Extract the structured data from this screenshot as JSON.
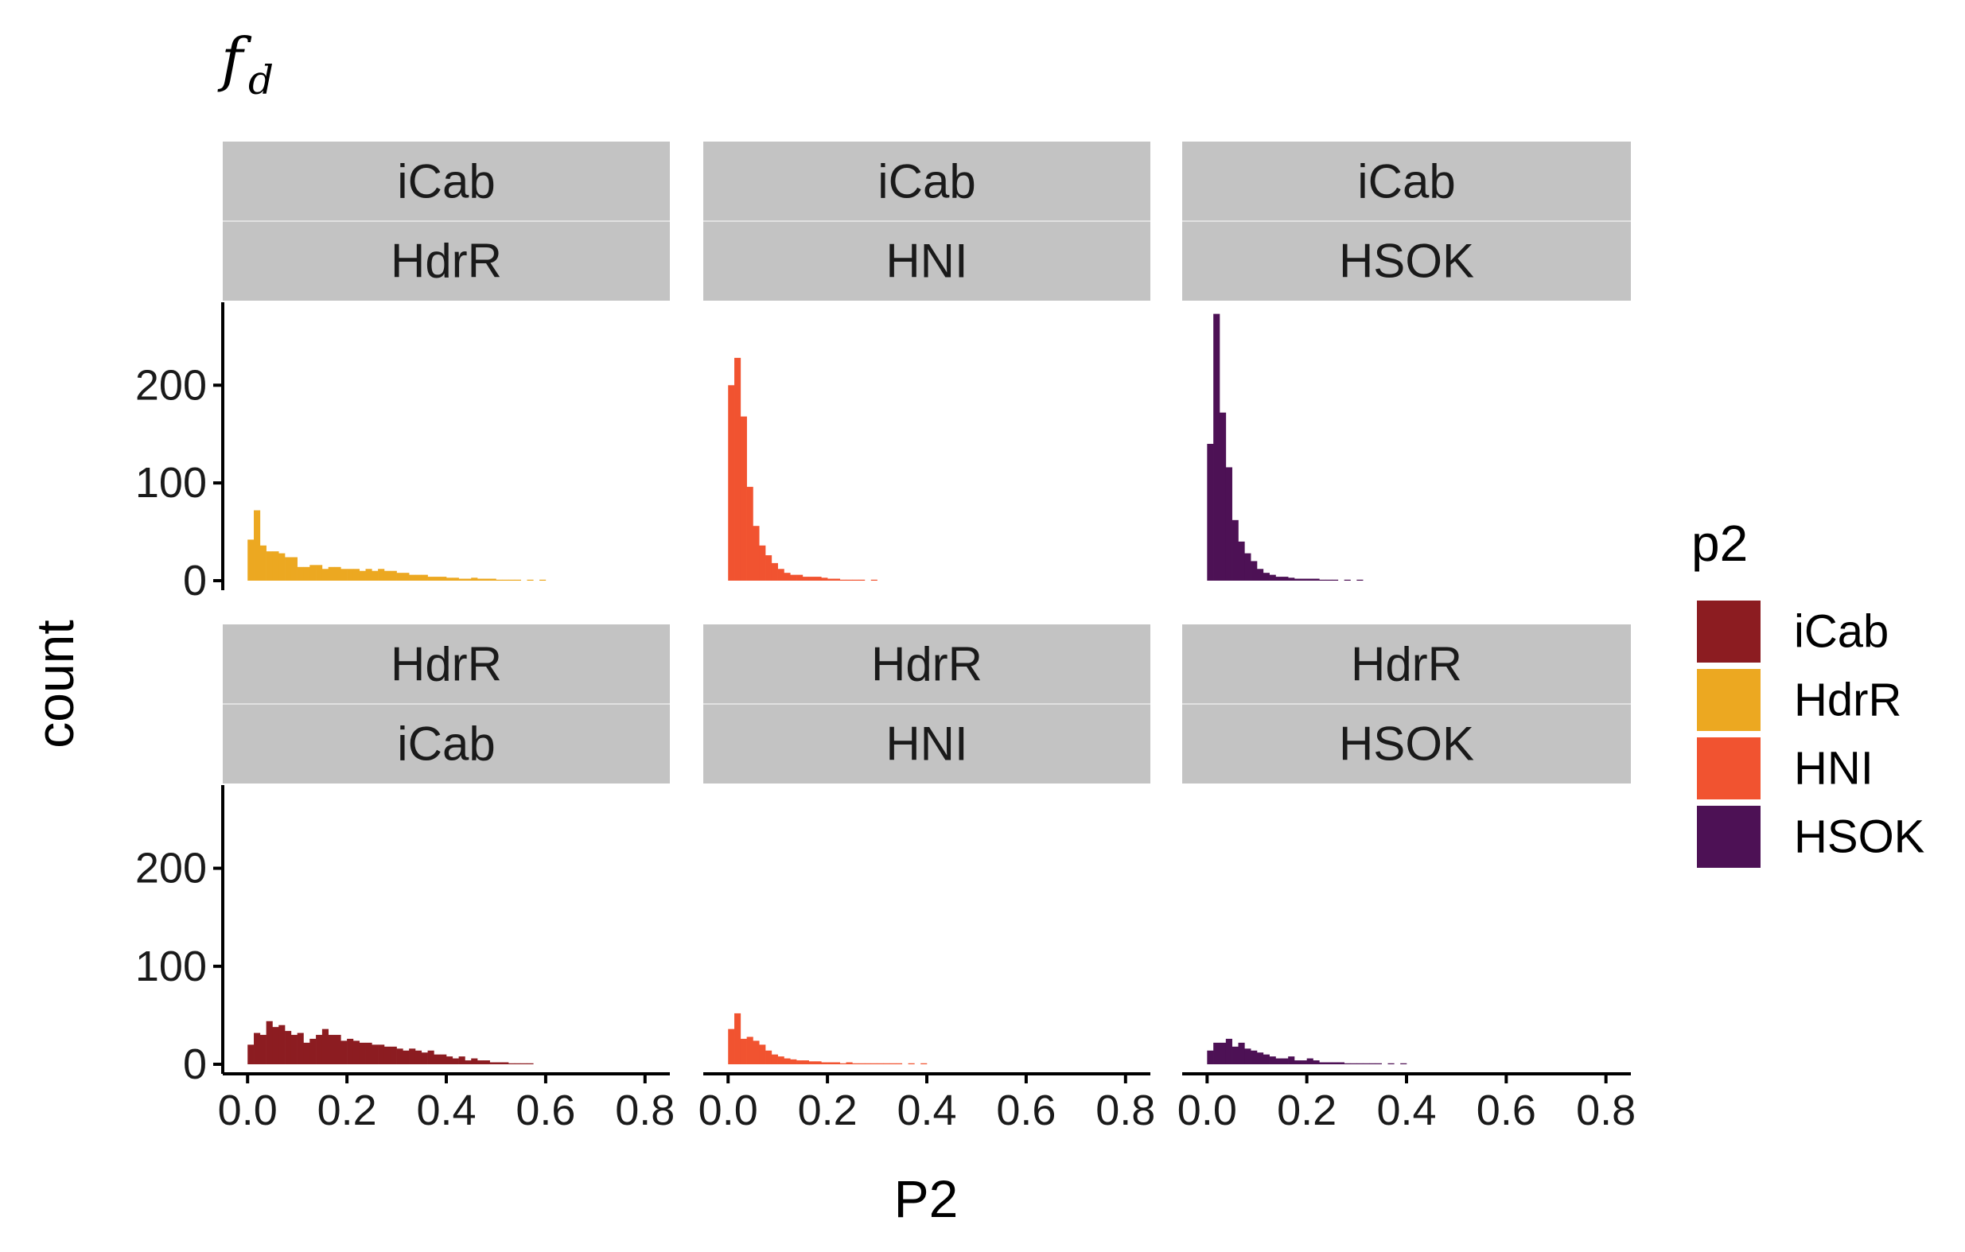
{
  "chart_data": {
    "type": "bar",
    "title_main": "f",
    "title_sub": "d",
    "xlabel": "P2",
    "ylabel": "count",
    "xlim": [
      -0.05,
      0.85
    ],
    "ylim": [
      0,
      280
    ],
    "x_ticks": [
      0.0,
      0.2,
      0.4,
      0.6,
      0.8
    ],
    "x_tick_labels": [
      "0.0",
      "0.2",
      "0.4",
      "0.6",
      "0.8"
    ],
    "y_ticks": [
      0,
      100,
      200
    ],
    "y_tick_labels": [
      "0",
      "100",
      "200"
    ],
    "bin_width": 0.0125,
    "bin_start": 0.0,
    "legend": {
      "title": "p2",
      "placement": "right",
      "entries": [
        {
          "label": "iCab",
          "color": "#8c1c21"
        },
        {
          "label": "HdrR",
          "color": "#eca821"
        },
        {
          "label": "HNI",
          "color": "#f15330"
        },
        {
          "label": "HSOK",
          "color": "#4d1155"
        }
      ]
    },
    "panels": [
      {
        "strip_top": "iCab",
        "strip_bottom": "HdrR",
        "color": "#eca821",
        "counts": [
          42,
          72,
          36,
          30,
          30,
          28,
          24,
          24,
          14,
          14,
          16,
          16,
          12,
          14,
          14,
          12,
          12,
          12,
          10,
          12,
          10,
          12,
          10,
          10,
          8,
          8,
          6,
          6,
          6,
          4,
          4,
          4,
          3,
          3,
          2,
          2,
          3,
          2,
          2,
          2,
          1,
          1,
          1,
          1,
          0,
          1,
          0,
          1
        ]
      },
      {
        "strip_top": "iCab",
        "strip_bottom": "HNI",
        "color": "#f15330",
        "counts": [
          200,
          228,
          168,
          96,
          56,
          36,
          26,
          18,
          12,
          8,
          6,
          6,
          4,
          4,
          4,
          3,
          2,
          2,
          1,
          1,
          1,
          1,
          0,
          1
        ]
      },
      {
        "strip_top": "iCab",
        "strip_bottom": "HSOK",
        "color": "#4d1155",
        "counts": [
          140,
          273,
          172,
          116,
          62,
          40,
          28,
          20,
          12,
          8,
          6,
          4,
          4,
          3,
          2,
          2,
          2,
          2,
          1,
          1,
          1,
          0,
          1,
          0,
          1
        ]
      },
      {
        "strip_top": "HdrR",
        "strip_bottom": "iCab",
        "color": "#8c1c21",
        "counts": [
          20,
          32,
          30,
          44,
          38,
          40,
          34,
          30,
          32,
          22,
          26,
          30,
          36,
          30,
          30,
          24,
          26,
          24,
          22,
          22,
          20,
          20,
          18,
          18,
          16,
          14,
          16,
          14,
          12,
          14,
          10,
          10,
          8,
          6,
          8,
          4,
          6,
          4,
          4,
          2,
          2,
          2,
          1,
          1,
          1,
          1
        ]
      },
      {
        "strip_top": "HdrR",
        "strip_bottom": "HNI",
        "color": "#f15330",
        "counts": [
          36,
          52,
          26,
          28,
          24,
          20,
          14,
          10,
          8,
          6,
          5,
          4,
          4,
          3,
          3,
          2,
          2,
          2,
          1,
          2,
          1,
          1,
          1,
          1,
          1,
          1,
          1,
          1,
          0,
          1,
          0,
          1
        ]
      },
      {
        "strip_top": "HdrR",
        "strip_bottom": "HSOK",
        "color": "#4d1155",
        "counts": [
          14,
          22,
          22,
          26,
          18,
          22,
          16,
          14,
          12,
          10,
          8,
          6,
          6,
          8,
          4,
          4,
          6,
          4,
          2,
          2,
          2,
          2,
          1,
          1,
          1,
          1,
          1,
          1,
          0,
          1,
          0,
          1
        ]
      }
    ]
  }
}
